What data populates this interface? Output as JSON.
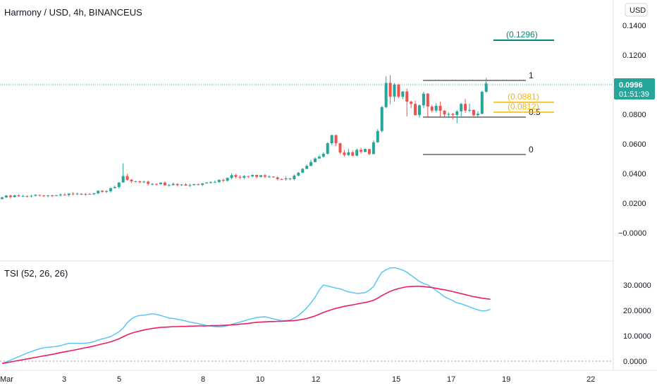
{
  "header": {
    "title": "Harmony / USD, 4h, BINANCEUS",
    "currency_button": "USD"
  },
  "colors": {
    "up": "#26a69a",
    "down": "#ef5350",
    "tsi": "#4fc3f7",
    "signal": "#e91e63",
    "fib": "#f5b800",
    "target": "#00897b",
    "price_badge": "#26a69a"
  },
  "price_axis": {
    "ticks": [
      "0.1400",
      "0.1200",
      "0.1000",
      "0.0800",
      "0.0600",
      "0.0400",
      "0.0200",
      "−0.0000"
    ],
    "current_price": "0.0996",
    "countdown": "01:51:39"
  },
  "tsi_panel": {
    "label": "TSI (52, 26, 26)",
    "ticks": [
      "30.0000",
      "20.0000",
      "10.0000",
      "0.0000"
    ]
  },
  "time_axis": {
    "ticks": [
      "Mar",
      "3",
      "5",
      "8",
      "10",
      "12",
      "15",
      "17",
      "19",
      "22"
    ]
  },
  "annotations": {
    "target_label": "(0.1296)",
    "fib_1": "1",
    "fib_05": "0.5",
    "fib_0": "0",
    "level_a": "(0.0881)",
    "level_b": "(0.0812)"
  },
  "chart_data": [
    {
      "type": "candlestick",
      "title": "Harmony / USD, 4h, BINANCEUS",
      "ylim": [
        -0.0118,
        0.152
      ],
      "x_range": [
        0,
        133
      ],
      "candles": [
        [
          0.0272,
          0.0281,
          0.0267,
          0.0285
        ],
        [
          0.0281,
          0.0293,
          0.0278,
          0.0296
        ],
        [
          0.0293,
          0.0283,
          0.0275,
          0.0298
        ],
        [
          0.0283,
          0.0294,
          0.0281,
          0.0299
        ],
        [
          0.0294,
          0.0289,
          0.0285,
          0.0301
        ],
        [
          0.0289,
          0.029,
          0.0284,
          0.0297
        ],
        [
          0.029,
          0.0287,
          0.028,
          0.0293
        ],
        [
          0.0287,
          0.0291,
          0.0281,
          0.0298
        ],
        [
          0.0291,
          0.0297,
          0.0288,
          0.0302
        ],
        [
          0.0297,
          0.0293,
          0.0287,
          0.0298
        ],
        [
          0.0293,
          0.029,
          0.0283,
          0.0297
        ],
        [
          0.029,
          0.0294,
          0.0282,
          0.0296
        ],
        [
          0.0294,
          0.0292,
          0.0282,
          0.0297
        ],
        [
          0.0292,
          0.0294,
          0.0289,
          0.0298
        ],
        [
          0.0294,
          0.0299,
          0.0287,
          0.0307
        ],
        [
          0.0299,
          0.0296,
          0.0293,
          0.0309
        ],
        [
          0.0296,
          0.0305,
          0.0286,
          0.0307
        ],
        [
          0.0305,
          0.0303,
          0.0294,
          0.0314
        ],
        [
          0.0303,
          0.0305,
          0.0296,
          0.0311
        ],
        [
          0.0305,
          0.0299,
          0.0296,
          0.0304
        ],
        [
          0.0299,
          0.0303,
          0.0292,
          0.0309
        ],
        [
          0.0303,
          0.0301,
          0.0298,
          0.0308
        ],
        [
          0.0301,
          0.0307,
          0.0296,
          0.031
        ],
        [
          0.0307,
          0.0323,
          0.0301,
          0.0325
        ],
        [
          0.0323,
          0.0316,
          0.031,
          0.0327
        ],
        [
          0.0316,
          0.032,
          0.0308,
          0.0327
        ],
        [
          0.032,
          0.0339,
          0.0311,
          0.0344
        ],
        [
          0.0339,
          0.0346,
          0.0338,
          0.0355
        ],
        [
          0.0346,
          0.0375,
          0.0337,
          0.0376
        ],
        [
          0.0375,
          0.0415,
          0.0373,
          0.0496
        ],
        [
          0.0415,
          0.0392,
          0.0386,
          0.0428
        ],
        [
          0.0392,
          0.0382,
          0.0371,
          0.0397
        ],
        [
          0.0382,
          0.0382,
          0.0377,
          0.0386
        ],
        [
          0.0382,
          0.0376,
          0.0371,
          0.0386
        ],
        [
          0.0376,
          0.038,
          0.0371,
          0.0387
        ],
        [
          0.038,
          0.0366,
          0.0356,
          0.0386
        ],
        [
          0.0366,
          0.0366,
          0.0356,
          0.0371
        ],
        [
          0.0366,
          0.0365,
          0.0355,
          0.0369
        ],
        [
          0.0365,
          0.0374,
          0.0359,
          0.0376
        ],
        [
          0.0374,
          0.0357,
          0.0355,
          0.0382
        ],
        [
          0.0357,
          0.0359,
          0.0349,
          0.0365
        ],
        [
          0.0359,
          0.0366,
          0.0355,
          0.0374
        ],
        [
          0.0366,
          0.0358,
          0.0349,
          0.037
        ],
        [
          0.0358,
          0.0363,
          0.0353,
          0.0364
        ],
        [
          0.0363,
          0.0356,
          0.0354,
          0.0371
        ],
        [
          0.0356,
          0.0358,
          0.0347,
          0.0368
        ],
        [
          0.0358,
          0.0364,
          0.0357,
          0.0367
        ],
        [
          0.0364,
          0.036,
          0.0356,
          0.0368
        ],
        [
          0.036,
          0.0369,
          0.0352,
          0.0371
        ],
        [
          0.0369,
          0.0374,
          0.0368,
          0.0379
        ],
        [
          0.0374,
          0.0376,
          0.0369,
          0.0383
        ],
        [
          0.0376,
          0.0377,
          0.0373,
          0.0388
        ],
        [
          0.0377,
          0.0391,
          0.0374,
          0.0395
        ],
        [
          0.0391,
          0.0386,
          0.0376,
          0.0399
        ],
        [
          0.0386,
          0.0403,
          0.038,
          0.0408
        ],
        [
          0.0403,
          0.0421,
          0.0394,
          0.0433
        ],
        [
          0.0421,
          0.041,
          0.0402,
          0.0429
        ],
        [
          0.041,
          0.0405,
          0.0396,
          0.0419
        ],
        [
          0.0405,
          0.0415,
          0.0397,
          0.0421
        ],
        [
          0.0415,
          0.0413,
          0.0402,
          0.0416
        ],
        [
          0.0413,
          0.0422,
          0.0407,
          0.0426
        ],
        [
          0.0422,
          0.041,
          0.04,
          0.0425
        ],
        [
          0.041,
          0.042,
          0.0406,
          0.0422
        ],
        [
          0.042,
          0.0411,
          0.0402,
          0.0428
        ],
        [
          0.0411,
          0.0412,
          0.0405,
          0.042
        ],
        [
          0.0412,
          0.0407,
          0.0405,
          0.0413
        ],
        [
          0.0407,
          0.0396,
          0.0386,
          0.0412
        ],
        [
          0.0396,
          0.0395,
          0.0392,
          0.04
        ],
        [
          0.0395,
          0.04,
          0.0386,
          0.0412
        ],
        [
          0.04,
          0.0396,
          0.0389,
          0.0403
        ],
        [
          0.0396,
          0.0418,
          0.0388,
          0.0426
        ],
        [
          0.0418,
          0.0436,
          0.0413,
          0.0441
        ],
        [
          0.0436,
          0.046,
          0.0435,
          0.0466
        ],
        [
          0.046,
          0.0479,
          0.0459,
          0.0488
        ],
        [
          0.0479,
          0.0503,
          0.0477,
          0.0518
        ],
        [
          0.0503,
          0.0525,
          0.0501,
          0.0533
        ],
        [
          0.0525,
          0.0537,
          0.0524,
          0.0547
        ],
        [
          0.0537,
          0.0555,
          0.053,
          0.0564
        ],
        [
          0.0555,
          0.0621,
          0.055,
          0.0628
        ],
        [
          0.0621,
          0.0672,
          0.0612,
          0.0675
        ],
        [
          0.0672,
          0.0621,
          0.0604,
          0.0675
        ],
        [
          0.0621,
          0.0563,
          0.0553,
          0.0624
        ],
        [
          0.0563,
          0.0547,
          0.0538,
          0.0579
        ],
        [
          0.0547,
          0.0564,
          0.0541,
          0.0587
        ],
        [
          0.0564,
          0.0543,
          0.0536,
          0.0576
        ],
        [
          0.0543,
          0.058,
          0.0539,
          0.0588
        ],
        [
          0.058,
          0.0567,
          0.0556,
          0.0591
        ],
        [
          0.0567,
          0.0585,
          0.0564,
          0.0589
        ],
        [
          0.0585,
          0.0553,
          0.0546,
          0.0586
        ],
        [
          0.0553,
          0.0627,
          0.0552,
          0.0639
        ],
        [
          0.0627,
          0.0698,
          0.0624,
          0.0711
        ],
        [
          0.0698,
          0.0848,
          0.0689,
          0.0854
        ],
        [
          0.0848,
          0.1,
          0.0842,
          0.1041
        ],
        [
          0.1,
          0.0914,
          0.0866,
          0.1049
        ],
        [
          0.0914,
          0.0989,
          0.0883,
          0.0999
        ],
        [
          0.0989,
          0.0913,
          0.0904,
          0.0992
        ],
        [
          0.0913,
          0.0946,
          0.0898,
          0.0948
        ],
        [
          0.0946,
          0.0882,
          0.0789,
          0.0965
        ],
        [
          0.0882,
          0.0868,
          0.0841,
          0.0888
        ],
        [
          0.0868,
          0.0798,
          0.0794,
          0.0888
        ],
        [
          0.0798,
          0.0859,
          0.0782,
          0.0865
        ],
        [
          0.0859,
          0.0932,
          0.0842,
          0.0944
        ],
        [
          0.0932,
          0.0851,
          0.0787,
          0.0936
        ],
        [
          0.0851,
          0.0826,
          0.0815,
          0.0861
        ],
        [
          0.0826,
          0.0856,
          0.0815,
          0.0871
        ],
        [
          0.0856,
          0.0825,
          0.0788,
          0.0883
        ],
        [
          0.0825,
          0.0802,
          0.0789,
          0.0829
        ],
        [
          0.0802,
          0.0805,
          0.0781,
          0.0815
        ],
        [
          0.0805,
          0.0799,
          0.0772,
          0.0812
        ],
        [
          0.0799,
          0.0821,
          0.0747,
          0.0829
        ],
        [
          0.0821,
          0.0868,
          0.0789,
          0.0875
        ],
        [
          0.0868,
          0.0826,
          0.0812,
          0.0899
        ],
        [
          0.0826,
          0.083,
          0.0816,
          0.0869
        ],
        [
          0.083,
          0.0797,
          0.0789,
          0.0835
        ],
        [
          0.0797,
          0.0806,
          0.0786,
          0.0821
        ],
        [
          0.0806,
          0.0944,
          0.0803,
          0.095
        ],
        [
          0.0944,
          0.0996,
          0.0939,
          0.1031
        ]
      ],
      "note": "candles are [open, close, low, high]"
    },
    {
      "type": "line",
      "title": "TSI (52, 26, 26)",
      "ylim": [
        -1.0,
        38.0
      ],
      "series": [
        {
          "values": [
            -1.0,
            -0.3,
            0.4,
            1.1,
            1.8,
            2.5,
            3.2,
            3.8,
            4.4,
            4.9,
            5.3,
            5.5,
            5.6,
            5.8,
            6.1,
            6.6,
            7.0,
            7.0,
            7.0,
            7.0,
            7.1,
            7.3,
            7.7,
            8.3,
            8.8,
            9.2,
            9.7,
            10.6,
            11.6,
            13.0,
            15.2,
            16.6,
            17.6,
            18.0,
            18.1,
            18.4,
            18.7,
            18.4,
            18.0,
            17.5,
            17.0,
            16.8,
            16.5,
            16.2,
            15.8,
            15.4,
            15.1,
            14.8,
            14.4,
            14.0,
            13.8,
            13.6,
            13.5,
            13.6,
            14.0,
            14.5,
            15.0,
            15.4,
            15.9,
            16.4,
            16.8,
            17.2,
            17.4,
            17.5,
            17.1,
            16.7,
            16.3,
            16.0,
            16.0,
            16.2,
            17.0,
            18.0,
            19.4,
            21.0,
            23.0,
            25.2,
            28.0,
            30.0,
            29.6,
            29.2,
            28.8,
            28.5,
            27.8,
            27.3,
            27.0,
            26.7,
            26.8,
            27.0,
            28.0,
            29.4,
            32.4,
            35.0,
            36.0,
            36.7,
            36.8,
            36.4,
            35.9,
            35.0,
            33.8,
            32.6,
            31.4,
            30.6,
            30.0,
            29.0,
            27.8,
            26.6,
            25.4,
            24.6,
            23.8,
            23.0,
            22.6,
            22.0,
            21.4,
            20.8,
            20.2,
            19.8,
            19.9,
            20.4
          ]
        },
        {
          "values": [
            -0.8,
            -0.6,
            -0.3,
            0.0,
            0.3,
            0.6,
            0.9,
            1.2,
            1.5,
            1.8,
            2.1,
            2.4,
            2.7,
            3.0,
            3.4,
            3.7,
            4.0,
            4.3,
            4.6,
            5.0,
            5.3,
            5.6,
            6.0,
            6.4,
            6.8,
            7.2,
            7.6,
            8.2,
            8.8,
            9.6,
            10.4,
            11.0,
            11.5,
            11.9,
            12.3,
            12.6,
            12.9,
            13.1,
            13.3,
            13.4,
            13.5,
            13.6,
            13.6,
            13.7,
            13.7,
            13.8,
            13.8,
            13.9,
            13.9,
            13.9,
            14.0,
            14.0,
            14.0,
            14.1,
            14.2,
            14.3,
            14.4,
            14.6,
            14.7,
            14.9,
            15.1,
            15.3,
            15.4,
            15.5,
            15.6,
            15.6,
            15.7,
            15.7,
            15.8,
            15.9,
            16.0,
            16.2,
            16.5,
            16.8,
            17.3,
            17.8,
            18.5,
            19.2,
            19.8,
            20.3,
            20.8,
            21.2,
            21.6,
            21.9,
            22.2,
            22.5,
            22.8,
            23.1,
            23.5,
            24.0,
            24.8,
            25.8,
            26.7,
            27.5,
            28.1,
            28.6,
            29.0,
            29.3,
            29.4,
            29.5,
            29.5,
            29.4,
            29.2,
            29.0,
            28.7,
            28.4,
            28.1,
            27.8,
            27.4,
            27.0,
            26.6,
            26.2,
            25.8,
            25.4,
            25.1,
            24.8,
            24.6,
            24.4
          ]
        }
      ]
    }
  ]
}
